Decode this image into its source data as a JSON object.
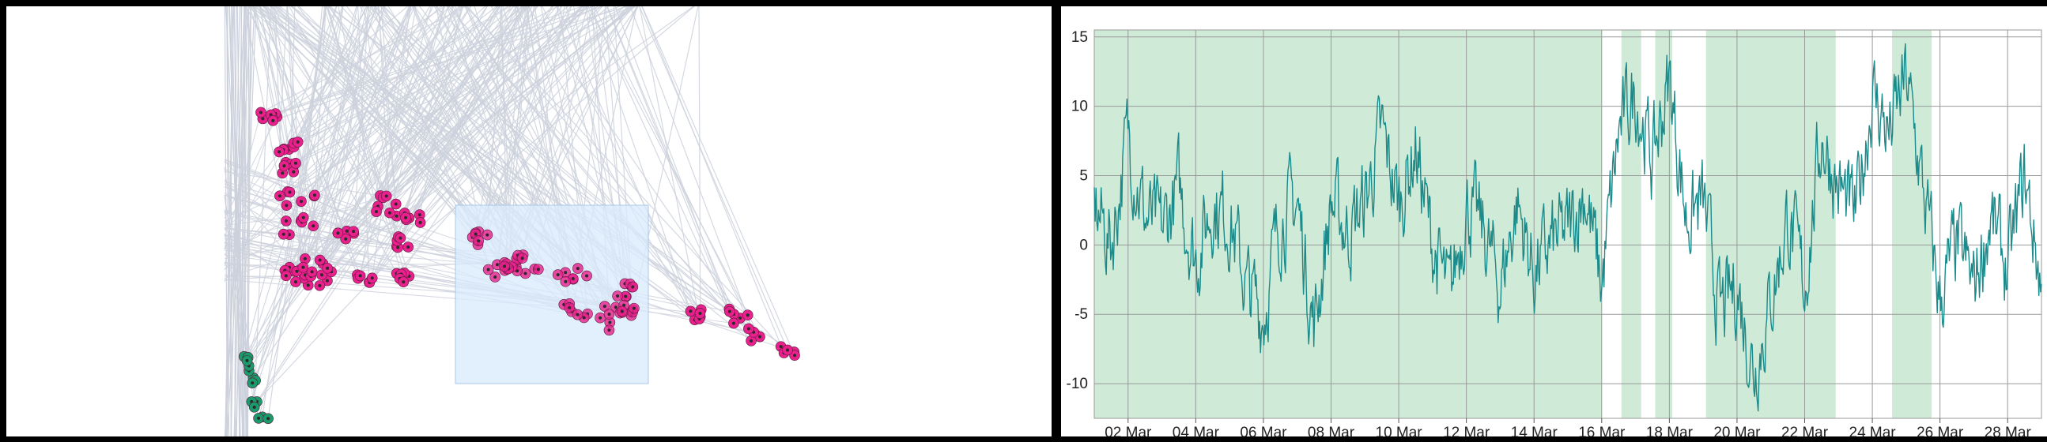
{
  "colors": {
    "edge": "#cdd1dc",
    "magenta_node": "#e8218c",
    "teal_node": "#1a9b6c",
    "node_center": "#2a2a2a",
    "selection_fill": "#d8e9fb",
    "selection_stroke": "#a9c9ec",
    "band_fill": "#cfead6",
    "line": "#1a8a8a",
    "grid": "#9a9a9a"
  },
  "network": {
    "clusters": [
      {
        "name": "magenta-left",
        "color": "magenta",
        "count": 95
      },
      {
        "name": "magenta-selected",
        "color": "magenta",
        "count": 62
      },
      {
        "name": "magenta-right",
        "color": "magenta",
        "count": 22
      },
      {
        "name": "teal-bottom",
        "color": "teal",
        "count": 14
      }
    ]
  },
  "chart_data": {
    "type": "line",
    "title": "",
    "xlabel": "",
    "ylabel": "",
    "x_tick_labels": [
      "02 Mar",
      "04 Mar",
      "06 Mar",
      "08 Mar",
      "10 Mar",
      "12 Mar",
      "14 Mar",
      "16 Mar",
      "18 Mar",
      "20 Mar",
      "22 Mar",
      "24 Mar",
      "26 Mar",
      "28 Mar"
    ],
    "x_range": [
      "01 Mar",
      "29 Mar"
    ],
    "y_ticks": [
      15,
      10,
      5,
      0,
      -5,
      -10
    ],
    "ylim": [
      -12.5,
      15.5
    ],
    "grid": true,
    "highlight_bands": [
      [
        "01 Mar 00:00",
        "16 Mar 00:00"
      ],
      [
        "16 Mar 14:00",
        "17 Mar 04:00"
      ],
      [
        "17 Mar 14:00",
        "18 Mar 02:00"
      ],
      [
        "19 Mar 02:00",
        "22 Mar 22:00"
      ],
      [
        "24 Mar 14:00",
        "25 Mar 18:00"
      ]
    ],
    "series": [
      {
        "x": [
          "01 Mar 00:00",
          "01 Mar 12:00",
          "02 Mar 00:00",
          "02 Mar 12:00",
          "03 Mar 00:00",
          "03 Mar 12:00",
          "04 Mar 00:00",
          "04 Mar 12:00",
          "05 Mar 00:00",
          "05 Mar 12:00",
          "06 Mar 00:00",
          "06 Mar 12:00",
          "07 Mar 00:00",
          "07 Mar 12:00",
          "08 Mar 00:00",
          "08 Mar 12:00",
          "09 Mar 00:00",
          "09 Mar 12:00",
          "10 Mar 00:00",
          "10 Mar 12:00",
          "11 Mar 00:00",
          "11 Mar 12:00",
          "12 Mar 00:00",
          "12 Mar 12:00",
          "13 Mar 00:00",
          "13 Mar 12:00",
          "14 Mar 00:00",
          "14 Mar 12:00",
          "15 Mar 00:00",
          "15 Mar 12:00",
          "16 Mar 00:00",
          "16 Mar 12:00",
          "17 Mar 00:00",
          "17 Mar 12:00",
          "18 Mar 00:00",
          "18 Mar 12:00",
          "19 Mar 00:00",
          "19 Mar 12:00",
          "20 Mar 00:00",
          "20 Mar 12:00",
          "21 Mar 00:00",
          "21 Mar 12:00",
          "22 Mar 00:00",
          "22 Mar 12:00",
          "23 Mar 00:00",
          "23 Mar 12:00",
          "24 Mar 00:00",
          "24 Mar 12:00",
          "25 Mar 00:00",
          "25 Mar 12:00",
          "26 Mar 00:00",
          "26 Mar 12:00",
          "27 Mar 00:00",
          "27 Mar 12:00",
          "28 Mar 00:00",
          "28 Mar 12:00",
          "29 Mar 00:00"
        ],
        "y": [
          3,
          0,
          8,
          2,
          1,
          4,
          -1,
          3,
          2,
          -3,
          -5,
          2,
          3,
          -6,
          3,
          1,
          3,
          8,
          3,
          7,
          0,
          -4,
          3,
          1,
          -3,
          3,
          -2,
          0,
          1,
          4,
          -3,
          8,
          11,
          6,
          12,
          2,
          3,
          -5,
          -3,
          -9,
          -4,
          2,
          -3,
          8,
          4,
          2,
          11,
          8,
          12,
          4,
          -4,
          0,
          -3,
          2,
          -2,
          5,
          -3
        ]
      }
    ]
  }
}
